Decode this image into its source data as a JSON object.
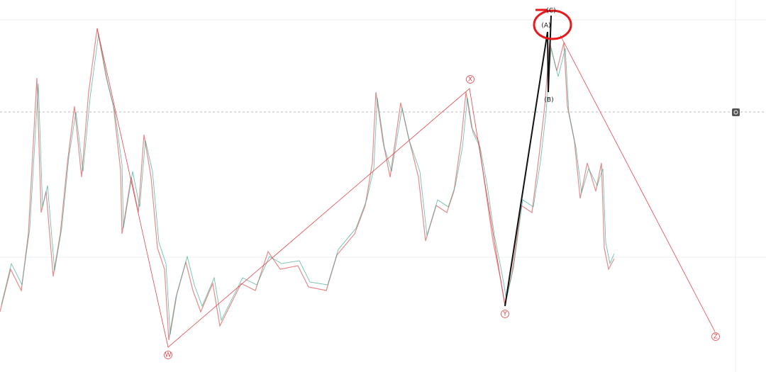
{
  "labels": {
    "w": "W",
    "x": "X",
    "y": "Y",
    "z": "Z",
    "a": "(A)",
    "b": "(B)",
    "c": "(C)"
  }
}
